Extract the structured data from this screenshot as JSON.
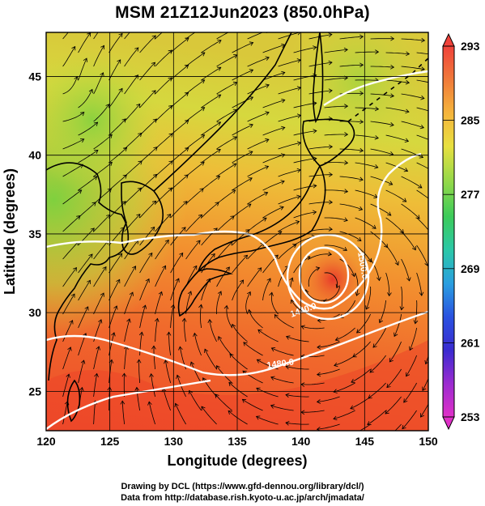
{
  "title": "MSM 21Z12Jun2023 (850.0hPa)",
  "axes": {
    "xlabel": "Longitude (degrees)",
    "ylabel": "Latitude  (degrees)",
    "xticks": [
      "120",
      "125",
      "130",
      "135",
      "140",
      "145",
      "150"
    ],
    "yticks": [
      "25",
      "30",
      "35",
      "40",
      "45"
    ]
  },
  "colorbar": {
    "ticks": [
      "293",
      "285",
      "277",
      "269",
      "261",
      "253"
    ],
    "range": [
      253,
      293
    ],
    "colors_top_to_bottom": [
      "#f0423a",
      "#f07a3a",
      "#f5b43c",
      "#e8e040",
      "#8fd84a",
      "#3ccb5a",
      "#2bc8a8",
      "#2a9fe0",
      "#2a52e0",
      "#3a2bd0",
      "#9b2bd0",
      "#e030c8"
    ]
  },
  "contour_labels": [
    "1500.0",
    "1440.0",
    "1480.0"
  ],
  "field": {
    "colors": {
      "south": "#ee4a2a",
      "mid": "#f07d2e",
      "warm": "#f2a132",
      "yellow": "#e7d33e",
      "green": "#8fd23e",
      "lowcenter": "#e8392a"
    },
    "streamline_color": "#000000",
    "contour_color": "#ffffff",
    "coast_color": "#000000"
  },
  "credits": {
    "line1": "Drawing by DCL (https://www.gfd-dennou.org/library/dcl/)",
    "line2": "Data from http://database.rish.kyoto-u.ac.jp/arch/jmadata/"
  }
}
